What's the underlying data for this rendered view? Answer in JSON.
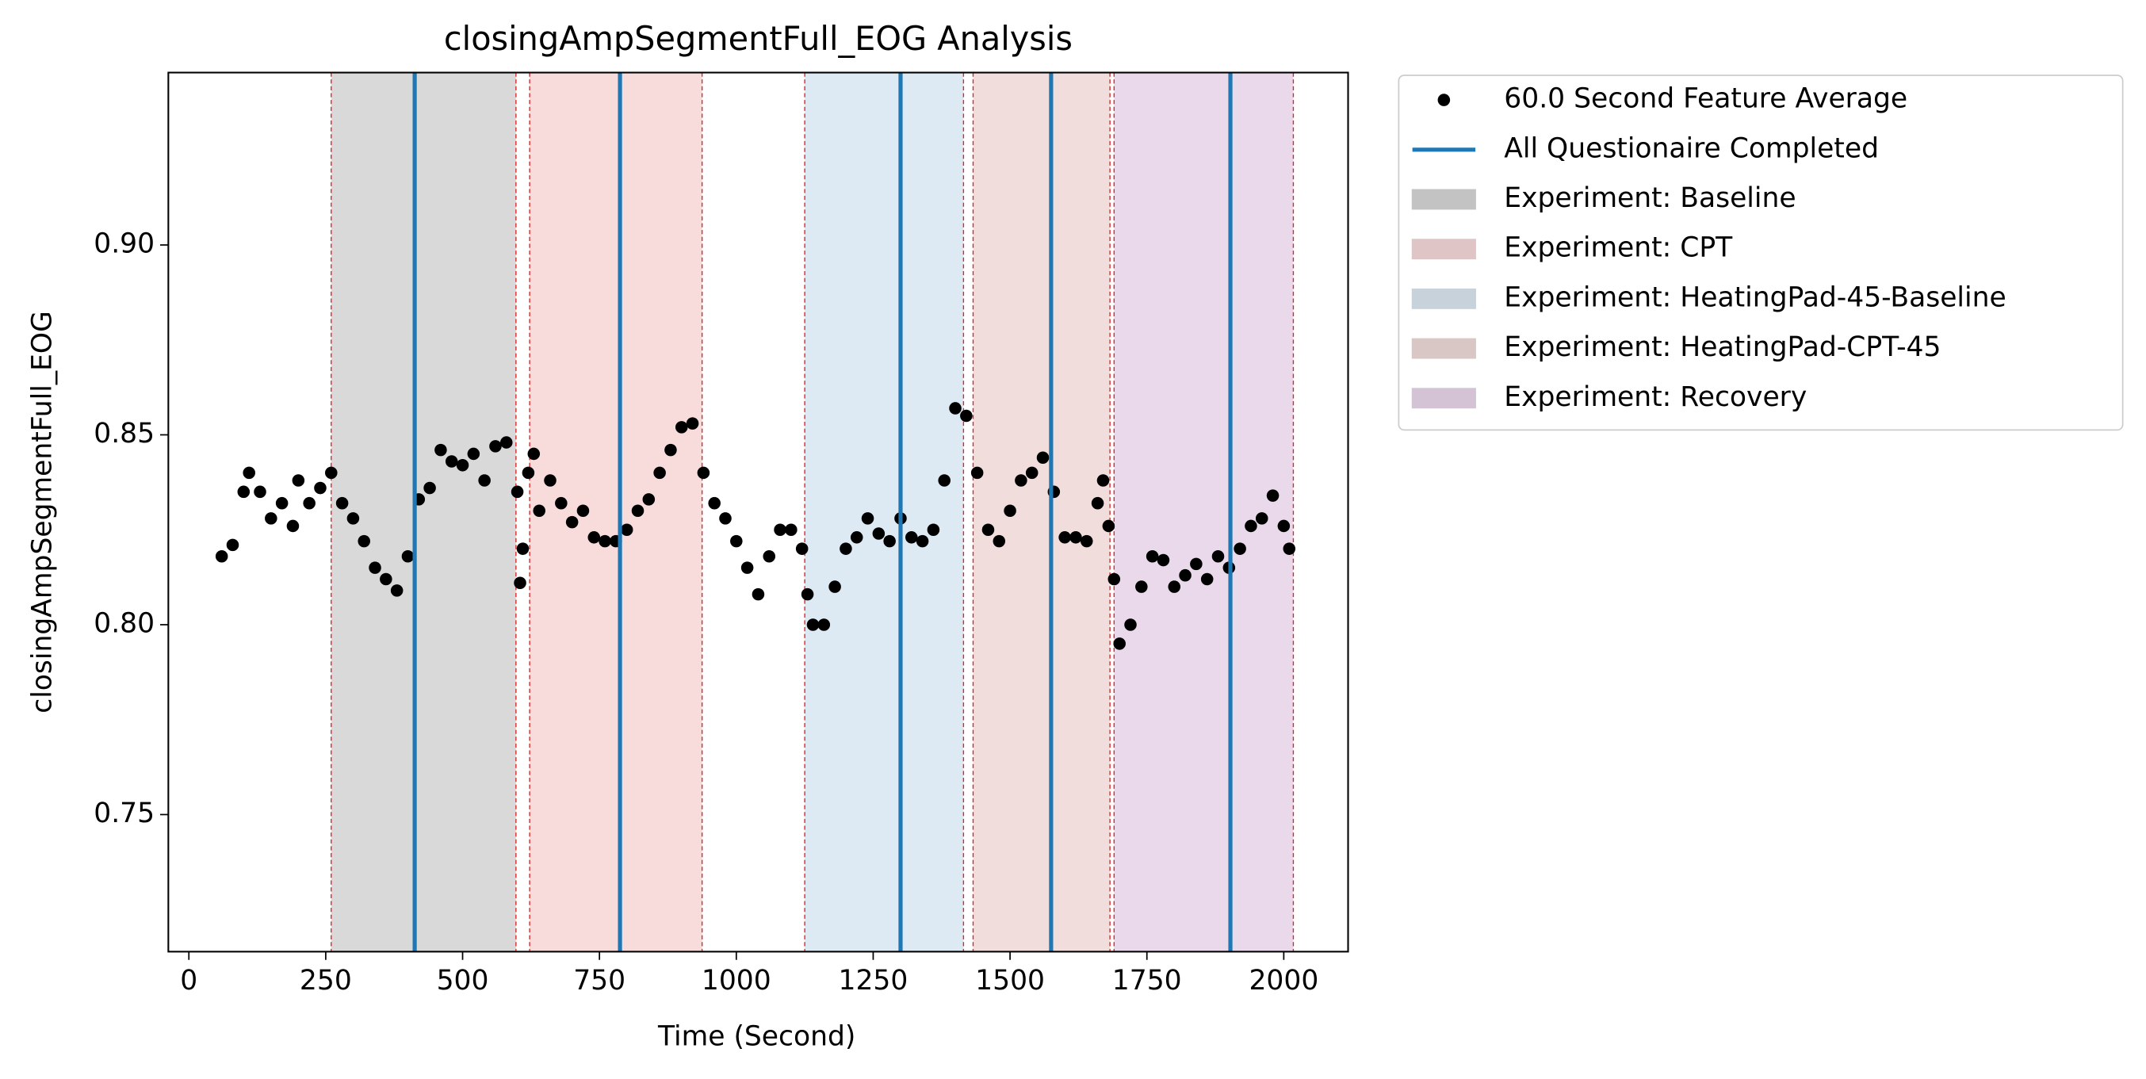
{
  "chart_data": {
    "type": "scatter",
    "title": "closingAmpSegmentFull_EOG Analysis",
    "x_label": "Time (Second)",
    "y_label": "closingAmpSegmentFull_EOG",
    "xlim": [
      -37.5,
      2117.5
    ],
    "ylim": [
      0.7139,
      0.9454
    ],
    "xticks": [
      0,
      250,
      500,
      750,
      1000,
      1250,
      1500,
      1750,
      2000
    ],
    "yticks": [
      0.75,
      0.8,
      0.85,
      0.9
    ],
    "series": [
      {
        "name": "60.0 Second Feature Average",
        "color": "#000000",
        "x": [
          60,
          80,
          100,
          110,
          130,
          150,
          170,
          190,
          200,
          220,
          240,
          260,
          280,
          300,
          320,
          340,
          360,
          380,
          400,
          420,
          440,
          460,
          480,
          500,
          520,
          540,
          560,
          580,
          600,
          605,
          610,
          620,
          630,
          640,
          660,
          680,
          700,
          720,
          740,
          760,
          780,
          800,
          820,
          840,
          860,
          880,
          900,
          920,
          940,
          960,
          980,
          1000,
          1020,
          1040,
          1060,
          1080,
          1100,
          1120,
          1130,
          1140,
          1160,
          1180,
          1200,
          1220,
          1240,
          1260,
          1280,
          1300,
          1320,
          1340,
          1360,
          1380,
          1400,
          1420,
          1440,
          1460,
          1480,
          1500,
          1520,
          1540,
          1560,
          1580,
          1600,
          1620,
          1640,
          1660,
          1670,
          1680,
          1690,
          1700,
          1720,
          1740,
          1760,
          1780,
          1800,
          1820,
          1840,
          1860,
          1880,
          1900,
          1920,
          1940,
          1960,
          1980,
          2000,
          2010
        ],
        "values": [
          0.818,
          0.821,
          0.835,
          0.84,
          0.835,
          0.828,
          0.832,
          0.826,
          0.838,
          0.832,
          0.836,
          0.84,
          0.832,
          0.828,
          0.822,
          0.815,
          0.812,
          0.809,
          0.818,
          0.833,
          0.836,
          0.846,
          0.843,
          0.842,
          0.845,
          0.838,
          0.847,
          0.848,
          0.835,
          0.811,
          0.82,
          0.84,
          0.845,
          0.83,
          0.838,
          0.832,
          0.827,
          0.83,
          0.823,
          0.822,
          0.822,
          0.825,
          0.83,
          0.833,
          0.84,
          0.846,
          0.852,
          0.853,
          0.84,
          0.832,
          0.828,
          0.822,
          0.815,
          0.808,
          0.818,
          0.825,
          0.825,
          0.82,
          0.808,
          0.8,
          0.8,
          0.81,
          0.82,
          0.823,
          0.828,
          0.824,
          0.822,
          0.828,
          0.823,
          0.822,
          0.825,
          0.838,
          0.857,
          0.855,
          0.84,
          0.825,
          0.822,
          0.83,
          0.838,
          0.84,
          0.844,
          0.835,
          0.823,
          0.823,
          0.822,
          0.832,
          0.838,
          0.826,
          0.812,
          0.795,
          0.8,
          0.81,
          0.818,
          0.817,
          0.81,
          0.813,
          0.816,
          0.812,
          0.818,
          0.815,
          0.82,
          0.826,
          0.828,
          0.834,
          0.826,
          0.82
        ]
      }
    ],
    "vlines": {
      "name": "All Questionaire Completed",
      "color": "#1f77b4",
      "x": [
        412.5,
        787.5,
        1300,
        1575,
        1902.5
      ]
    },
    "spans": [
      {
        "name": "Experiment: Baseline",
        "color": "#d9d9d9",
        "start": 260,
        "end": 597.5
      },
      {
        "name": "Experiment: CPT",
        "color": "#f8dbdb",
        "start": 622.5,
        "end": 937.5
      },
      {
        "name": "Experiment: HeatingPad-45-Baseline",
        "color": "#dde9f3",
        "start": 1125,
        "end": 1415
      },
      {
        "name": "Experiment: HeatingPad-CPT-45",
        "color": "#f1dddc",
        "start": 1432.5,
        "end": 1682.5
      },
      {
        "name": "Experiment: Recovery",
        "color": "#ead9eb",
        "start": 1690,
        "end": 2017.5
      }
    ],
    "span_edge_color": "#d62728"
  }
}
